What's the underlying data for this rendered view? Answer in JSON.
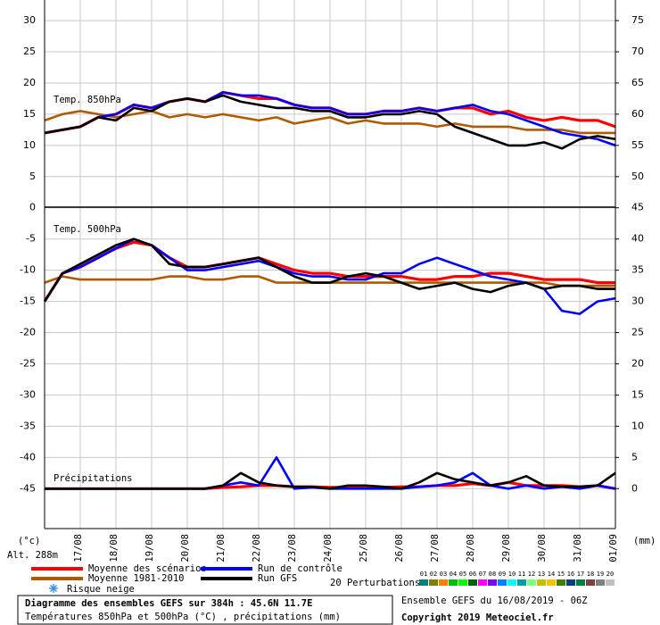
{
  "chart_data": {
    "type": "line",
    "labels": {
      "temp850": "Temp. 850hPa",
      "temp500": "Temp. 500hPa",
      "precip": "Précipitations"
    },
    "y_unit": "(°c)",
    "y2_unit": "(mm)",
    "altitude": "Alt. 288m",
    "title": "Diagramme des ensembles GEFS sur 384h : 45.6N 11.7E",
    "subtitle": "Températures 850hPa et 500hPa (°C) , précipitations (mm)",
    "run_info": "Ensemble GEFS du 16/08/2019 - 06Z",
    "copyright": "Copyright 2019 Meteociel.fr",
    "snow_label": "Risque neige",
    "xlim": [
      0,
      16
    ],
    "xticks": [
      {
        "value": 1,
        "label": "17/08"
      },
      {
        "value": 2,
        "label": "18/08"
      },
      {
        "value": 3,
        "label": "19/08"
      },
      {
        "value": 4,
        "label": "20/08"
      },
      {
        "value": 5,
        "label": "21/08"
      },
      {
        "value": 6,
        "label": "22/08"
      },
      {
        "value": 7,
        "label": "23/08"
      },
      {
        "value": 8,
        "label": "24/08"
      },
      {
        "value": 9,
        "label": "25/08"
      },
      {
        "value": 10,
        "label": "26/08"
      },
      {
        "value": 11,
        "label": "27/08"
      },
      {
        "value": 12,
        "label": "28/08"
      },
      {
        "value": 13,
        "label": "29/08"
      },
      {
        "value": 14,
        "label": "30/08"
      },
      {
        "value": 15,
        "label": "31/08"
      },
      {
        "value": 16,
        "label": "01/09"
      }
    ],
    "ylim": [
      -51.4,
      33.3
    ],
    "yticks": [
      30,
      25,
      20,
      15,
      10,
      5,
      0,
      -5,
      -10,
      -15,
      -20,
      -25,
      -30,
      -35,
      -40,
      -45
    ],
    "y2lim": [
      -6.4,
      78.3
    ],
    "y2ticks": [
      75,
      70,
      65,
      60,
      55,
      50,
      45,
      40,
      35,
      30,
      25,
      20,
      15,
      10,
      5,
      0
    ],
    "grid": true,
    "series": [
      {
        "name": "Moyenne des scénarios",
        "color": "#ff0000",
        "temp850": [
          12,
          12.5,
          13,
          14.5,
          15,
          16.5,
          16,
          17,
          17.5,
          17,
          18.5,
          18,
          17.5,
          17.5,
          16.5,
          16,
          16,
          15,
          15,
          15.5,
          15.5,
          16,
          15.5,
          16,
          16,
          15,
          15.5,
          14.5,
          14,
          14.5,
          14,
          14,
          13
        ],
        "temp500": [
          -15,
          -10.5,
          -9.5,
          -8,
          -6.5,
          -5.5,
          -6,
          -8,
          -9.5,
          -9.5,
          -9,
          -8.5,
          -8,
          -9,
          -10,
          -10.5,
          -10.5,
          -11,
          -11,
          -11,
          -11,
          -11.5,
          -11.5,
          -11,
          -11,
          -10.5,
          -10.5,
          -11,
          -11.5,
          -11.5,
          -11.5,
          -12,
          -12
        ],
        "precip": [
          0,
          0,
          0,
          0,
          0,
          0,
          0,
          0,
          0,
          0,
          0.2,
          0.3,
          0.5,
          0.5,
          0.3,
          0.3,
          0.2,
          0.2,
          0.2,
          0.2,
          0.3,
          0.3,
          0.5,
          0.5,
          0.8,
          0.5,
          1,
          0.5,
          0.5,
          0.5,
          0.3,
          0.5,
          0
        ]
      },
      {
        "name": "Moyenne 1981-2010",
        "color": "#b05a00",
        "temp850": [
          14,
          15,
          15.5,
          15,
          14.5,
          15,
          15.5,
          14.5,
          15,
          14.5,
          15,
          14.5,
          14,
          14.5,
          13.5,
          14,
          14.5,
          13.5,
          14,
          13.5,
          13.5,
          13.5,
          13,
          13.5,
          13,
          13,
          13,
          12.5,
          12.5,
          12.5,
          12,
          12,
          12
        ],
        "temp500": [
          -12,
          -11,
          -11.5,
          -11.5,
          -11.5,
          -11.5,
          -11.5,
          -11,
          -11,
          -11.5,
          -11.5,
          -11,
          -11,
          -12,
          -12,
          -12,
          -12,
          -12,
          -12,
          -12,
          -12,
          -12,
          -12,
          -12,
          -12,
          -12,
          -12,
          -12,
          -12,
          -12.5,
          -12.5,
          -12.5,
          -12.5
        ]
      },
      {
        "name": "Run de contrôle",
        "color": "#0000ff",
        "temp850": [
          12,
          12.5,
          13,
          14.5,
          15,
          16.5,
          16,
          17,
          17.5,
          17,
          18.5,
          18,
          18,
          17.5,
          16.5,
          16,
          16,
          15,
          15,
          15.5,
          15.5,
          16,
          15.5,
          16,
          16.5,
          15.5,
          15,
          14,
          13,
          12,
          11.5,
          11,
          10
        ],
        "temp500": [
          -15,
          -10.5,
          -9.5,
          -8,
          -6.5,
          -5,
          -6,
          -8,
          -10,
          -10,
          -9.5,
          -9,
          -8.5,
          -9.5,
          -10.5,
          -11,
          -11,
          -11.5,
          -11.5,
          -10.5,
          -10.5,
          -9,
          -8,
          -9,
          -10,
          -11,
          -11.5,
          -12,
          -13,
          -16.5,
          -17,
          -15,
          -14.5
        ],
        "precip": [
          0,
          0,
          0,
          0,
          0,
          0,
          0,
          0,
          0,
          0,
          0.5,
          1,
          0.5,
          5,
          0,
          0.2,
          0,
          0,
          0,
          0,
          0,
          0.3,
          0.5,
          1,
          2.5,
          0.5,
          0,
          0.5,
          0,
          0.3,
          0,
          0.5,
          0
        ]
      },
      {
        "name": "Run GFS",
        "color": "#000000",
        "temp850": [
          12,
          12.5,
          13,
          14.5,
          14,
          16,
          15.5,
          17,
          17.5,
          17,
          18,
          17,
          16.5,
          16,
          16,
          15.5,
          15.5,
          14.5,
          14.5,
          15,
          15,
          15.5,
          15,
          13,
          12,
          11,
          10,
          10,
          10.5,
          9.5,
          11,
          11.5,
          11
        ],
        "temp500": [
          -15,
          -10.5,
          -9,
          -7.5,
          -6,
          -5,
          -6,
          -9,
          -9.5,
          -9.5,
          -9,
          -8.5,
          -8,
          -9.5,
          -11,
          -12,
          -12,
          -11,
          -10.5,
          -11,
          -12,
          -13,
          -12.5,
          -12,
          -13,
          -13.5,
          -12.5,
          -12,
          -13,
          -12.5,
          -12.5,
          -13,
          -13
        ],
        "precip": [
          0,
          0,
          0,
          0,
          0,
          0,
          0,
          0,
          0,
          0,
          0.5,
          2.5,
          1,
          0.5,
          0.3,
          0.3,
          0,
          0.5,
          0.5,
          0.3,
          0,
          1,
          2.5,
          1.5,
          1,
          0.5,
          1,
          2,
          0.5,
          0.3,
          0.3,
          0.5,
          2.5
        ]
      }
    ],
    "perturbations": {
      "label": "20 Perturbations",
      "members": [
        {
          "name": "01",
          "color": "#008080"
        },
        {
          "name": "02",
          "color": "#808000"
        },
        {
          "name": "03",
          "color": "#ff8000"
        },
        {
          "name": "04",
          "color": "#00c000"
        },
        {
          "name": "05",
          "color": "#00ff00"
        },
        {
          "name": "06",
          "color": "#006000"
        },
        {
          "name": "07",
          "color": "#ff00ff"
        },
        {
          "name": "08",
          "color": "#8000ff"
        },
        {
          "name": "09",
          "color": "#0080ff"
        },
        {
          "name": "10",
          "color": "#00ffff"
        },
        {
          "name": "11",
          "color": "#00a0a0"
        },
        {
          "name": "12",
          "color": "#80ff80"
        },
        {
          "name": "13",
          "color": "#c0c000"
        },
        {
          "name": "14",
          "color": "#ffc000"
        },
        {
          "name": "15",
          "color": "#408000"
        },
        {
          "name": "16",
          "color": "#004080"
        },
        {
          "name": "17",
          "color": "#008040"
        },
        {
          "name": "18",
          "color": "#804040"
        },
        {
          "name": "19",
          "color": "#808080"
        },
        {
          "name": "20",
          "color": "#c0c0c0"
        }
      ]
    }
  }
}
